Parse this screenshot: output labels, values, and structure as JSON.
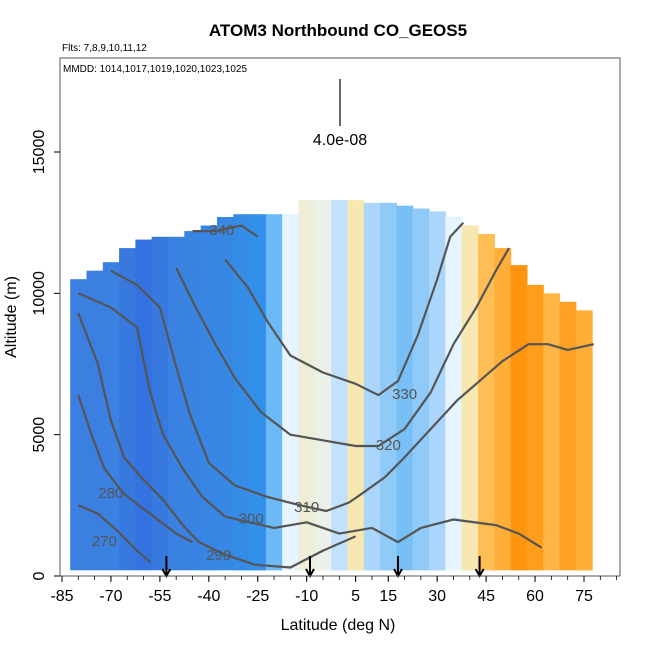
{
  "chart_data": {
    "type": "heatmap",
    "title": "ATOM3 Northbound CO_GEOS5",
    "subtitle_flights": "Flts: 7,8,9,10,11,12",
    "subtitle_dates": "MMDD: 1014,1017,1019,1020,1023,1025",
    "xlabel": "Latitude (deg N)",
    "ylabel": "Altitude (m)",
    "xlim": [
      -85,
      85
    ],
    "ylim": [
      0,
      17500
    ],
    "x_ticks": [
      -85,
      -70,
      -55,
      -40,
      -25,
      -10,
      5,
      15,
      30,
      45,
      60,
      75
    ],
    "y_ticks": [
      0,
      5000,
      10000,
      15000
    ],
    "scale_bar_label": "4.0e-08",
    "grid": false,
    "legend": "none",
    "colors": {
      "low_dark": "#0a1fd6",
      "low": "#3b7fe0",
      "mid_low": "#2e9bf0",
      "mid": "#e6f4ff",
      "mid_high": "#ffe08a",
      "high": "#ff8c00",
      "very_high": "#d81e1e",
      "contour": "#555555"
    },
    "columns": [
      {
        "lat": -80,
        "bottom": 200,
        "top": 10500,
        "value": 0.15
      },
      {
        "lat": -75,
        "bottom": 200,
        "top": 10800,
        "value": 0.15
      },
      {
        "lat": -70,
        "bottom": 200,
        "top": 11100,
        "value": 0.16
      },
      {
        "lat": -65,
        "bottom": 200,
        "top": 11600,
        "value": 0.14
      },
      {
        "lat": -60,
        "bottom": 200,
        "top": 11900,
        "value": 0.13
      },
      {
        "lat": -55,
        "bottom": 200,
        "top": 12000,
        "value": 0.14
      },
      {
        "lat": -50,
        "bottom": 200,
        "top": 12000,
        "value": 0.16
      },
      {
        "lat": -45,
        "bottom": 200,
        "top": 12200,
        "value": 0.17
      },
      {
        "lat": -40,
        "bottom": 200,
        "top": 12400,
        "value": 0.19
      },
      {
        "lat": -35,
        "bottom": 200,
        "top": 12700,
        "value": 0.2
      },
      {
        "lat": -30,
        "bottom": 200,
        "top": 12800,
        "value": 0.22
      },
      {
        "lat": -25,
        "bottom": 200,
        "top": 12800,
        "value": 0.24
      },
      {
        "lat": -20,
        "bottom": 200,
        "top": 12800,
        "value": 0.35
      },
      {
        "lat": -15,
        "bottom": 200,
        "top": 12800,
        "value": 0.45
      },
      {
        "lat": -10,
        "bottom": 200,
        "top": 13300,
        "value": 0.5
      },
      {
        "lat": -5,
        "bottom": 200,
        "top": 13300,
        "value": 0.48
      },
      {
        "lat": 0,
        "bottom": 200,
        "top": 13300,
        "value": 0.42
      },
      {
        "lat": 5,
        "bottom": 200,
        "top": 13300,
        "value": 0.55
      },
      {
        "lat": 10,
        "bottom": 200,
        "top": 13200,
        "value": 0.4
      },
      {
        "lat": 15,
        "bottom": 200,
        "top": 13200,
        "value": 0.38
      },
      {
        "lat": 20,
        "bottom": 200,
        "top": 13100,
        "value": 0.36
      },
      {
        "lat": 25,
        "bottom": 200,
        "top": 13000,
        "value": 0.38
      },
      {
        "lat": 30,
        "bottom": 200,
        "top": 12900,
        "value": 0.4
      },
      {
        "lat": 35,
        "bottom": 200,
        "top": 12700,
        "value": 0.45
      },
      {
        "lat": 40,
        "bottom": 200,
        "top": 12400,
        "value": 0.55
      },
      {
        "lat": 45,
        "bottom": 200,
        "top": 12100,
        "value": 0.68
      },
      {
        "lat": 50,
        "bottom": 200,
        "top": 11600,
        "value": 0.72
      },
      {
        "lat": 55,
        "bottom": 200,
        "top": 11000,
        "value": 0.78
      },
      {
        "lat": 60,
        "bottom": 200,
        "top": 10300,
        "value": 0.76
      },
      {
        "lat": 65,
        "bottom": 200,
        "top": 10000,
        "value": 0.7
      },
      {
        "lat": 70,
        "bottom": 200,
        "top": 9700,
        "value": 0.75
      },
      {
        "lat": 75,
        "bottom": 200,
        "top": 9400,
        "value": 0.72
      }
    ],
    "contours": [
      {
        "label": "270",
        "label_at": [
          -72,
          1200
        ],
        "points": [
          [
            -80,
            2500
          ],
          [
            -74,
            2200
          ],
          [
            -68,
            1600
          ],
          [
            -62,
            900
          ],
          [
            -58,
            500
          ]
        ]
      },
      {
        "label": "280",
        "label_at": [
          -70,
          2900
        ],
        "points": [
          [
            -80,
            6400
          ],
          [
            -76,
            5000
          ],
          [
            -72,
            3800
          ],
          [
            -66,
            2900
          ],
          [
            -58,
            2200
          ],
          [
            -50,
            1500
          ],
          [
            -45,
            1200
          ]
        ]
      },
      {
        "label": "290",
        "label_at": [
          -37,
          700
        ],
        "points": [
          [
            -80,
            9300
          ],
          [
            -74,
            7500
          ],
          [
            -70,
            5500
          ],
          [
            -66,
            4200
          ],
          [
            -60,
            3400
          ],
          [
            -54,
            2700
          ],
          [
            -48,
            1800
          ],
          [
            -43,
            1200
          ],
          [
            -36,
            800
          ],
          [
            -26,
            400
          ],
          [
            -15,
            300
          ],
          [
            -5,
            900
          ],
          [
            5,
            1400
          ]
        ]
      },
      {
        "label": "300",
        "label_at": [
          -27,
          2000
        ],
        "points": [
          [
            -80,
            10000
          ],
          [
            -70,
            9500
          ],
          [
            -62,
            8800
          ],
          [
            -58,
            6500
          ],
          [
            -54,
            5000
          ],
          [
            -48,
            3800
          ],
          [
            -42,
            2800
          ],
          [
            -35,
            2100
          ],
          [
            -20,
            1700
          ],
          [
            -10,
            1900
          ],
          [
            0,
            1500
          ],
          [
            10,
            1700
          ],
          [
            18,
            1200
          ],
          [
            25,
            1700
          ],
          [
            35,
            2000
          ],
          [
            48,
            1800
          ],
          [
            55,
            1500
          ],
          [
            62,
            1000
          ]
        ]
      },
      {
        "label": "310",
        "label_at": [
          -10,
          2400
        ],
        "points": [
          [
            -70,
            10800
          ],
          [
            -62,
            10300
          ],
          [
            -55,
            9500
          ],
          [
            -50,
            7400
          ],
          [
            -46,
            5800
          ],
          [
            -40,
            4000
          ],
          [
            -32,
            3200
          ],
          [
            -22,
            2800
          ],
          [
            -12,
            2500
          ],
          [
            -4,
            2300
          ],
          [
            3,
            2600
          ],
          [
            8,
            3000
          ],
          [
            14,
            3500
          ],
          [
            20,
            4200
          ],
          [
            28,
            5200
          ],
          [
            36,
            6200
          ],
          [
            44,
            7000
          ],
          [
            50,
            7600
          ],
          [
            58,
            8200
          ],
          [
            64,
            8200
          ],
          [
            70,
            8000
          ],
          [
            78,
            8200
          ]
        ]
      },
      {
        "label": "320",
        "label_at": [
          15,
          4600
        ],
        "points": [
          [
            -50,
            10900
          ],
          [
            -44,
            9500
          ],
          [
            -38,
            8200
          ],
          [
            -32,
            7000
          ],
          [
            -24,
            5800
          ],
          [
            -15,
            5000
          ],
          [
            -5,
            4800
          ],
          [
            5,
            4600
          ],
          [
            12,
            4600
          ],
          [
            20,
            5200
          ],
          [
            28,
            6500
          ],
          [
            35,
            8200
          ],
          [
            42,
            9500
          ],
          [
            48,
            10800
          ],
          [
            52,
            11600
          ]
        ]
      },
      {
        "label": "330",
        "label_at": [
          20,
          6400
        ],
        "points": [
          [
            -35,
            11200
          ],
          [
            -28,
            10200
          ],
          [
            -22,
            9000
          ],
          [
            -15,
            7800
          ],
          [
            -5,
            7200
          ],
          [
            5,
            6800
          ],
          [
            12,
            6400
          ],
          [
            18,
            6900
          ],
          [
            24,
            8500
          ],
          [
            30,
            10500
          ],
          [
            34,
            12000
          ],
          [
            38,
            12500
          ]
        ]
      },
      {
        "label": "340",
        "label_at": [
          -36,
          12200
        ],
        "points": [
          [
            -45,
            12200
          ],
          [
            -38,
            12200
          ],
          [
            -30,
            12400
          ],
          [
            -25,
            12000
          ]
        ]
      }
    ],
    "markers": [
      {
        "lat": -53
      },
      {
        "lat": -9
      },
      {
        "lat": 18
      },
      {
        "lat": 43
      }
    ]
  }
}
